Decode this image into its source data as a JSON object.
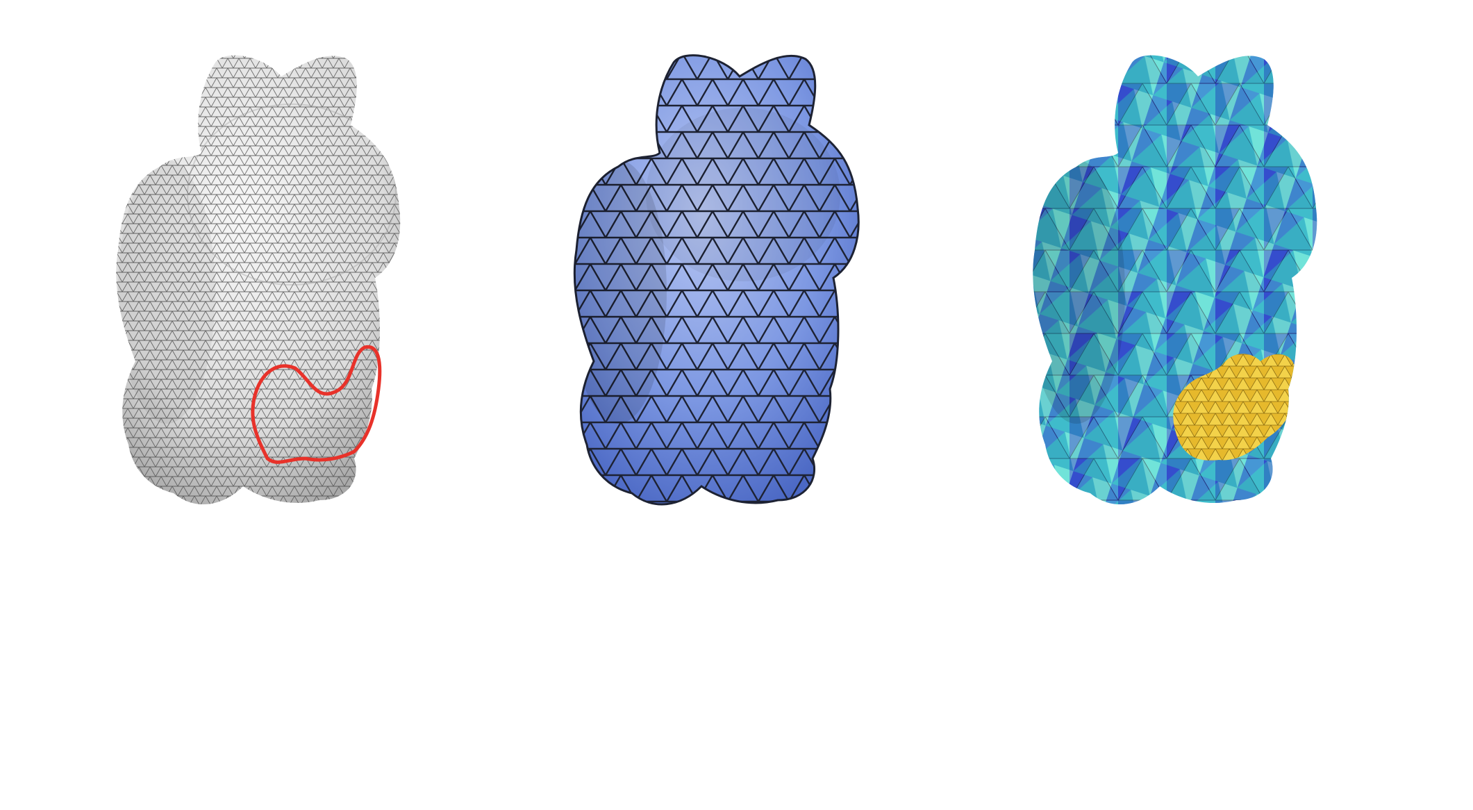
{
  "figure": {
    "panels": [
      {
        "id": "panel-input",
        "style": "fine gray triangle mesh with red curve"
      },
      {
        "id": "panel-remeshed",
        "style": "coarse blue triangle mesh, dark edges"
      },
      {
        "id": "panel-colored",
        "style": "multicolor faceted mesh with yellow region"
      }
    ],
    "colors": {
      "gray_fill": "#e6e6e6",
      "gray_shade": "#b8b8b8",
      "mesh_line_fine": "#4a4a4a",
      "curve_red": "#e8322a",
      "blue_fill": "#7c97e2",
      "blue_shade": "#4b68c4",
      "edge_dark": "#1d2233",
      "palette": [
        "#3a5ad8",
        "#4cc0d8",
        "#59e0e8",
        "#2a9fb2",
        "#8fe6c8",
        "#2e3fc0",
        "#5d78e8"
      ],
      "yellow_region": "#f0c93a"
    }
  }
}
